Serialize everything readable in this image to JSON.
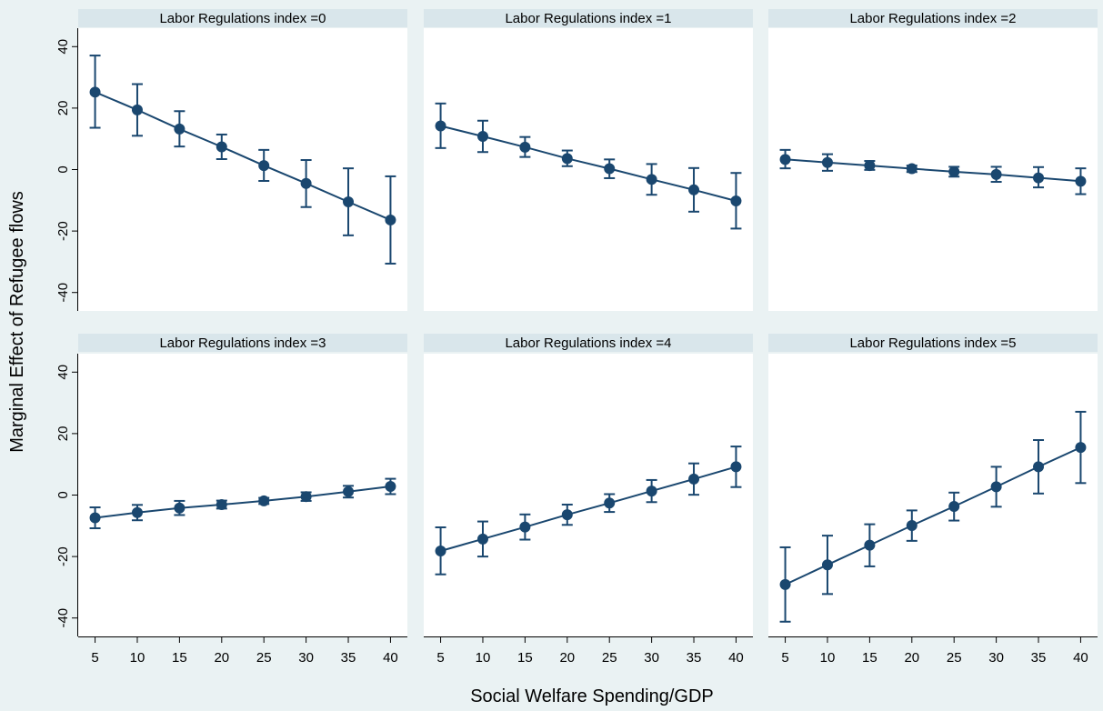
{
  "chart_data": {
    "type": "line",
    "xlabel": "Social Welfare Spending/GDP",
    "ylabel": "Marginal Effect of Refugee flows",
    "xlim": [
      3,
      42
    ],
    "ylim": [
      -46,
      46
    ],
    "x_ticks": [
      5,
      10,
      15,
      20,
      25,
      30,
      35,
      40
    ],
    "y_ticks": [
      -40,
      -20,
      0,
      20,
      40
    ],
    "grid": false,
    "colors": {
      "series": "#1a476f",
      "background": "#eaf2f3",
      "plot": "#ffffff",
      "strip": "#d9e6eb"
    },
    "x": [
      5,
      10,
      15,
      20,
      25,
      30,
      35,
      40
    ],
    "panels": [
      {
        "title": "Labor Regulations index =0",
        "values": [
          25.2,
          19.4,
          13.2,
          7.4,
          1.3,
          -4.5,
          -10.5,
          -16.4
        ],
        "ci_low": [
          13.6,
          11.0,
          7.5,
          3.4,
          -3.7,
          -12.2,
          -21.4,
          -30.6
        ],
        "ci_high": [
          37.1,
          27.8,
          19.0,
          11.4,
          6.4,
          3.1,
          0.4,
          -2.2
        ]
      },
      {
        "title": "Labor Regulations index =1",
        "values": [
          14.2,
          10.8,
          7.3,
          3.6,
          0.3,
          -3.2,
          -6.6,
          -10.2
        ],
        "ci_low": [
          7.0,
          5.7,
          4.1,
          1.1,
          -2.8,
          -8.2,
          -13.7,
          -19.2
        ],
        "ci_high": [
          21.5,
          15.9,
          10.6,
          6.2,
          3.3,
          1.8,
          0.5,
          -1.1
        ]
      },
      {
        "title": "Labor Regulations index =2",
        "values": [
          3.3,
          2.3,
          1.3,
          0.3,
          -0.7,
          -1.6,
          -2.7,
          -3.8
        ],
        "ci_low": [
          0.4,
          -0.4,
          -0.1,
          -0.8,
          -2.3,
          -4.0,
          -5.8,
          -8.0
        ],
        "ci_high": [
          6.4,
          5.0,
          2.8,
          1.3,
          0.9,
          0.9,
          0.8,
          0.4
        ]
      },
      {
        "title": "Labor Regulations index =3",
        "values": [
          -7.4,
          -5.7,
          -4.2,
          -3.1,
          -1.9,
          -0.5,
          1.1,
          2.8
        ],
        "ci_low": [
          -10.8,
          -8.2,
          -6.5,
          -4.4,
          -2.9,
          -1.9,
          -0.8,
          0.3
        ],
        "ci_high": [
          -4.0,
          -3.2,
          -1.9,
          -1.8,
          -0.9,
          0.9,
          3.0,
          5.3
        ]
      },
      {
        "title": "Labor Regulations index =4",
        "values": [
          -18.2,
          -14.3,
          -10.4,
          -6.4,
          -2.6,
          1.3,
          5.2,
          9.2
        ],
        "ci_low": [
          -25.8,
          -20.0,
          -14.5,
          -9.7,
          -5.5,
          -2.3,
          0.1,
          2.6
        ],
        "ci_high": [
          -10.5,
          -8.6,
          -6.3,
          -3.1,
          0.3,
          4.9,
          10.3,
          15.8
        ]
      },
      {
        "title": "Labor Regulations index =5",
        "values": [
          -29.1,
          -22.7,
          -16.3,
          -9.9,
          -3.7,
          2.7,
          9.2,
          15.5
        ],
        "ci_low": [
          -41.2,
          -32.2,
          -23.2,
          -14.9,
          -8.3,
          -3.8,
          0.5,
          3.9
        ],
        "ci_high": [
          -17.0,
          -13.2,
          -9.5,
          -5.0,
          0.8,
          9.2,
          17.9,
          27.1
        ]
      }
    ]
  }
}
